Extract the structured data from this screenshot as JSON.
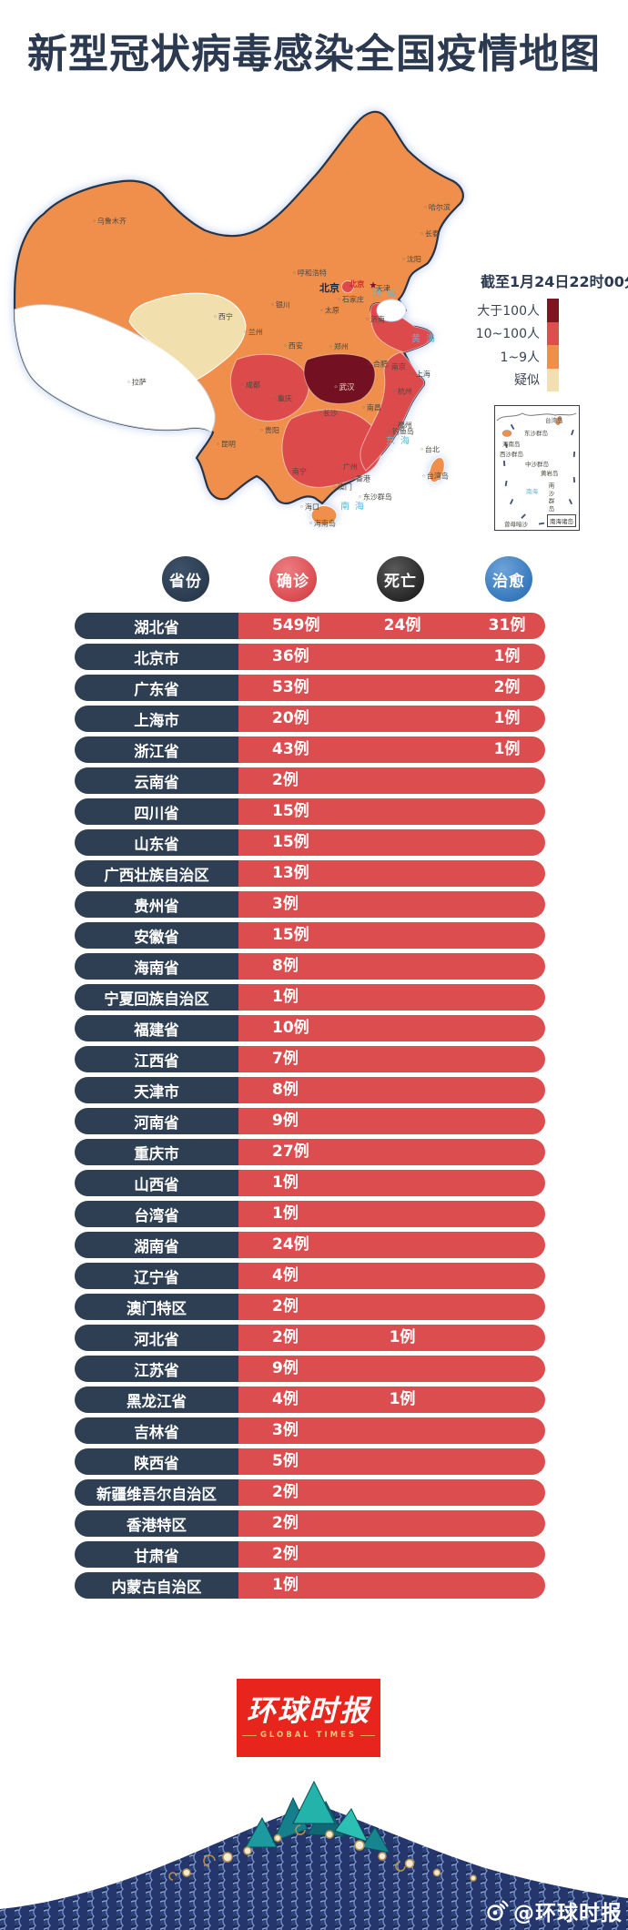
{
  "title": "新型冠状病毒感染全国疫情地图",
  "map": {
    "timestamp": "截至1月24日22时00分",
    "legend": [
      {
        "label": "大于100人",
        "color": "#7E1622"
      },
      {
        "label": "10~100人",
        "color": "#D9504F"
      },
      {
        "label": "1~9人",
        "color": "#EF9049"
      },
      {
        "label": "疑似",
        "color": "#F3E0B2"
      }
    ],
    "colors": {
      "base_orange": "#EF8F4B",
      "mid_red": "#DC4A4B",
      "high_maroon": "#731021",
      "suspected_cream": "#F2DFAE",
      "none_white": "#FFFFFF",
      "border_navy": "#26354A",
      "sea_label_blue": "#5FB4D8"
    },
    "capital_bold_label": "北京",
    "capital_small_label": "北京",
    "capital_star": "★",
    "wuhan_label": "武汉",
    "sea_labels": [
      "渤海",
      "黄海",
      "东海",
      "南海"
    ],
    "cities": [
      "乌鲁木齐",
      "哈尔滨",
      "长春",
      "沈阳",
      "呼和浩特",
      "银川",
      "西宁",
      "兰州",
      "西安",
      "太原",
      "石家庄",
      "天津",
      "济南",
      "郑州",
      "拉萨",
      "成都",
      "重庆",
      "合肥",
      "南京",
      "上海",
      "杭州",
      "南昌",
      "长沙",
      "贵阳",
      "昆明",
      "福州",
      "广州",
      "香港",
      "澳门",
      "南宁",
      "海口",
      "海南岛",
      "台北",
      "台湾岛",
      "钓鱼岛",
      "东沙群岛"
    ],
    "inset": {
      "labels": [
        "台湾岛",
        "东沙群岛",
        "海南岛",
        "西沙群岛",
        "中沙群岛",
        "黄岩岛",
        "南海",
        "南沙群岛",
        "曾母暗沙"
      ],
      "caption": "南海诸岛"
    }
  },
  "table": {
    "headers": [
      {
        "label": "省份",
        "color": "#2E3F54"
      },
      {
        "label": "确诊",
        "color": "#DD5257"
      },
      {
        "label": "死亡",
        "color": "#2B2B2B"
      },
      {
        "label": "治愈",
        "color": "#3E7FC1"
      }
    ],
    "rows": [
      {
        "province": "湖北省",
        "confirmed": "549例",
        "deaths": "24例",
        "cured": "31例"
      },
      {
        "province": "北京市",
        "confirmed": "36例",
        "deaths": "",
        "cured": "1例"
      },
      {
        "province": "广东省",
        "confirmed": "53例",
        "deaths": "",
        "cured": "2例"
      },
      {
        "province": "上海市",
        "confirmed": "20例",
        "deaths": "",
        "cured": "1例"
      },
      {
        "province": "浙江省",
        "confirmed": "43例",
        "deaths": "",
        "cured": "1例"
      },
      {
        "province": "云南省",
        "confirmed": "2例",
        "deaths": "",
        "cured": ""
      },
      {
        "province": "四川省",
        "confirmed": "15例",
        "deaths": "",
        "cured": ""
      },
      {
        "province": "山东省",
        "confirmed": "15例",
        "deaths": "",
        "cured": ""
      },
      {
        "province": "广西壮族自治区",
        "confirmed": "13例",
        "deaths": "",
        "cured": ""
      },
      {
        "province": "贵州省",
        "confirmed": "3例",
        "deaths": "",
        "cured": ""
      },
      {
        "province": "安徽省",
        "confirmed": "15例",
        "deaths": "",
        "cured": ""
      },
      {
        "province": "海南省",
        "confirmed": "8例",
        "deaths": "",
        "cured": ""
      },
      {
        "province": "宁夏回族自治区",
        "confirmed": "1例",
        "deaths": "",
        "cured": ""
      },
      {
        "province": "福建省",
        "confirmed": "10例",
        "deaths": "",
        "cured": ""
      },
      {
        "province": "江西省",
        "confirmed": "7例",
        "deaths": "",
        "cured": ""
      },
      {
        "province": "天津市",
        "confirmed": "8例",
        "deaths": "",
        "cured": ""
      },
      {
        "province": "河南省",
        "confirmed": "9例",
        "deaths": "",
        "cured": ""
      },
      {
        "province": "重庆市",
        "confirmed": "27例",
        "deaths": "",
        "cured": ""
      },
      {
        "province": "山西省",
        "confirmed": "1例",
        "deaths": "",
        "cured": ""
      },
      {
        "province": "台湾省",
        "confirmed": "1例",
        "deaths": "",
        "cured": ""
      },
      {
        "province": "湖南省",
        "confirmed": "24例",
        "deaths": "",
        "cured": ""
      },
      {
        "province": "辽宁省",
        "confirmed": "4例",
        "deaths": "",
        "cured": ""
      },
      {
        "province": "澳门特区",
        "confirmed": "2例",
        "deaths": "",
        "cured": ""
      },
      {
        "province": "河北省",
        "confirmed": "2例",
        "deaths": "1例",
        "cured": ""
      },
      {
        "province": "江苏省",
        "confirmed": "9例",
        "deaths": "",
        "cured": ""
      },
      {
        "province": "黑龙江省",
        "confirmed": "4例",
        "deaths": "1例",
        "cured": ""
      },
      {
        "province": "吉林省",
        "confirmed": "3例",
        "deaths": "",
        "cured": ""
      },
      {
        "province": "陕西省",
        "confirmed": "5例",
        "deaths": "",
        "cured": ""
      },
      {
        "province": "新疆维吾尔自治区",
        "confirmed": "2例",
        "deaths": "",
        "cured": ""
      },
      {
        "province": "香港特区",
        "confirmed": "2例",
        "deaths": "",
        "cured": ""
      },
      {
        "province": "甘肃省",
        "confirmed": "2例",
        "deaths": "",
        "cured": ""
      },
      {
        "province": "内蒙古自治区",
        "confirmed": "1例",
        "deaths": "",
        "cured": ""
      }
    ]
  },
  "footer": {
    "logo_cn": "环球时报",
    "logo_en": "GLOBAL TIMES",
    "watermark": "@环球时报"
  },
  "chart_data": {
    "type": "table",
    "title": "新型冠状病毒感染全国疫情地图",
    "as_of": "截至1月24日22时00分",
    "columns": [
      "省份",
      "确诊",
      "死亡",
      "治愈"
    ],
    "rows": [
      [
        "湖北省",
        549,
        24,
        31
      ],
      [
        "北京市",
        36,
        0,
        1
      ],
      [
        "广东省",
        53,
        0,
        2
      ],
      [
        "上海市",
        20,
        0,
        1
      ],
      [
        "浙江省",
        43,
        0,
        1
      ],
      [
        "云南省",
        2,
        0,
        0
      ],
      [
        "四川省",
        15,
        0,
        0
      ],
      [
        "山东省",
        15,
        0,
        0
      ],
      [
        "广西壮族自治区",
        13,
        0,
        0
      ],
      [
        "贵州省",
        3,
        0,
        0
      ],
      [
        "安徽省",
        15,
        0,
        0
      ],
      [
        "海南省",
        8,
        0,
        0
      ],
      [
        "宁夏回族自治区",
        1,
        0,
        0
      ],
      [
        "福建省",
        10,
        0,
        0
      ],
      [
        "江西省",
        7,
        0,
        0
      ],
      [
        "天津市",
        8,
        0,
        0
      ],
      [
        "河南省",
        9,
        0,
        0
      ],
      [
        "重庆市",
        27,
        0,
        0
      ],
      [
        "山西省",
        1,
        0,
        0
      ],
      [
        "台湾省",
        1,
        0,
        0
      ],
      [
        "湖南省",
        24,
        0,
        0
      ],
      [
        "辽宁省",
        4,
        0,
        0
      ],
      [
        "澳门特区",
        2,
        0,
        0
      ],
      [
        "河北省",
        2,
        1,
        0
      ],
      [
        "江苏省",
        9,
        0,
        0
      ],
      [
        "黑龙江省",
        4,
        1,
        0
      ],
      [
        "吉林省",
        3,
        0,
        0
      ],
      [
        "陕西省",
        5,
        0,
        0
      ],
      [
        "新疆维吾尔自治区",
        2,
        0,
        0
      ],
      [
        "香港特区",
        2,
        0,
        0
      ],
      [
        "甘肃省",
        2,
        0,
        0
      ],
      [
        "内蒙古自治区",
        1,
        0,
        0
      ]
    ],
    "legend_categories": [
      "大于100人",
      "10~100人",
      "1~9人",
      "疑似"
    ]
  }
}
